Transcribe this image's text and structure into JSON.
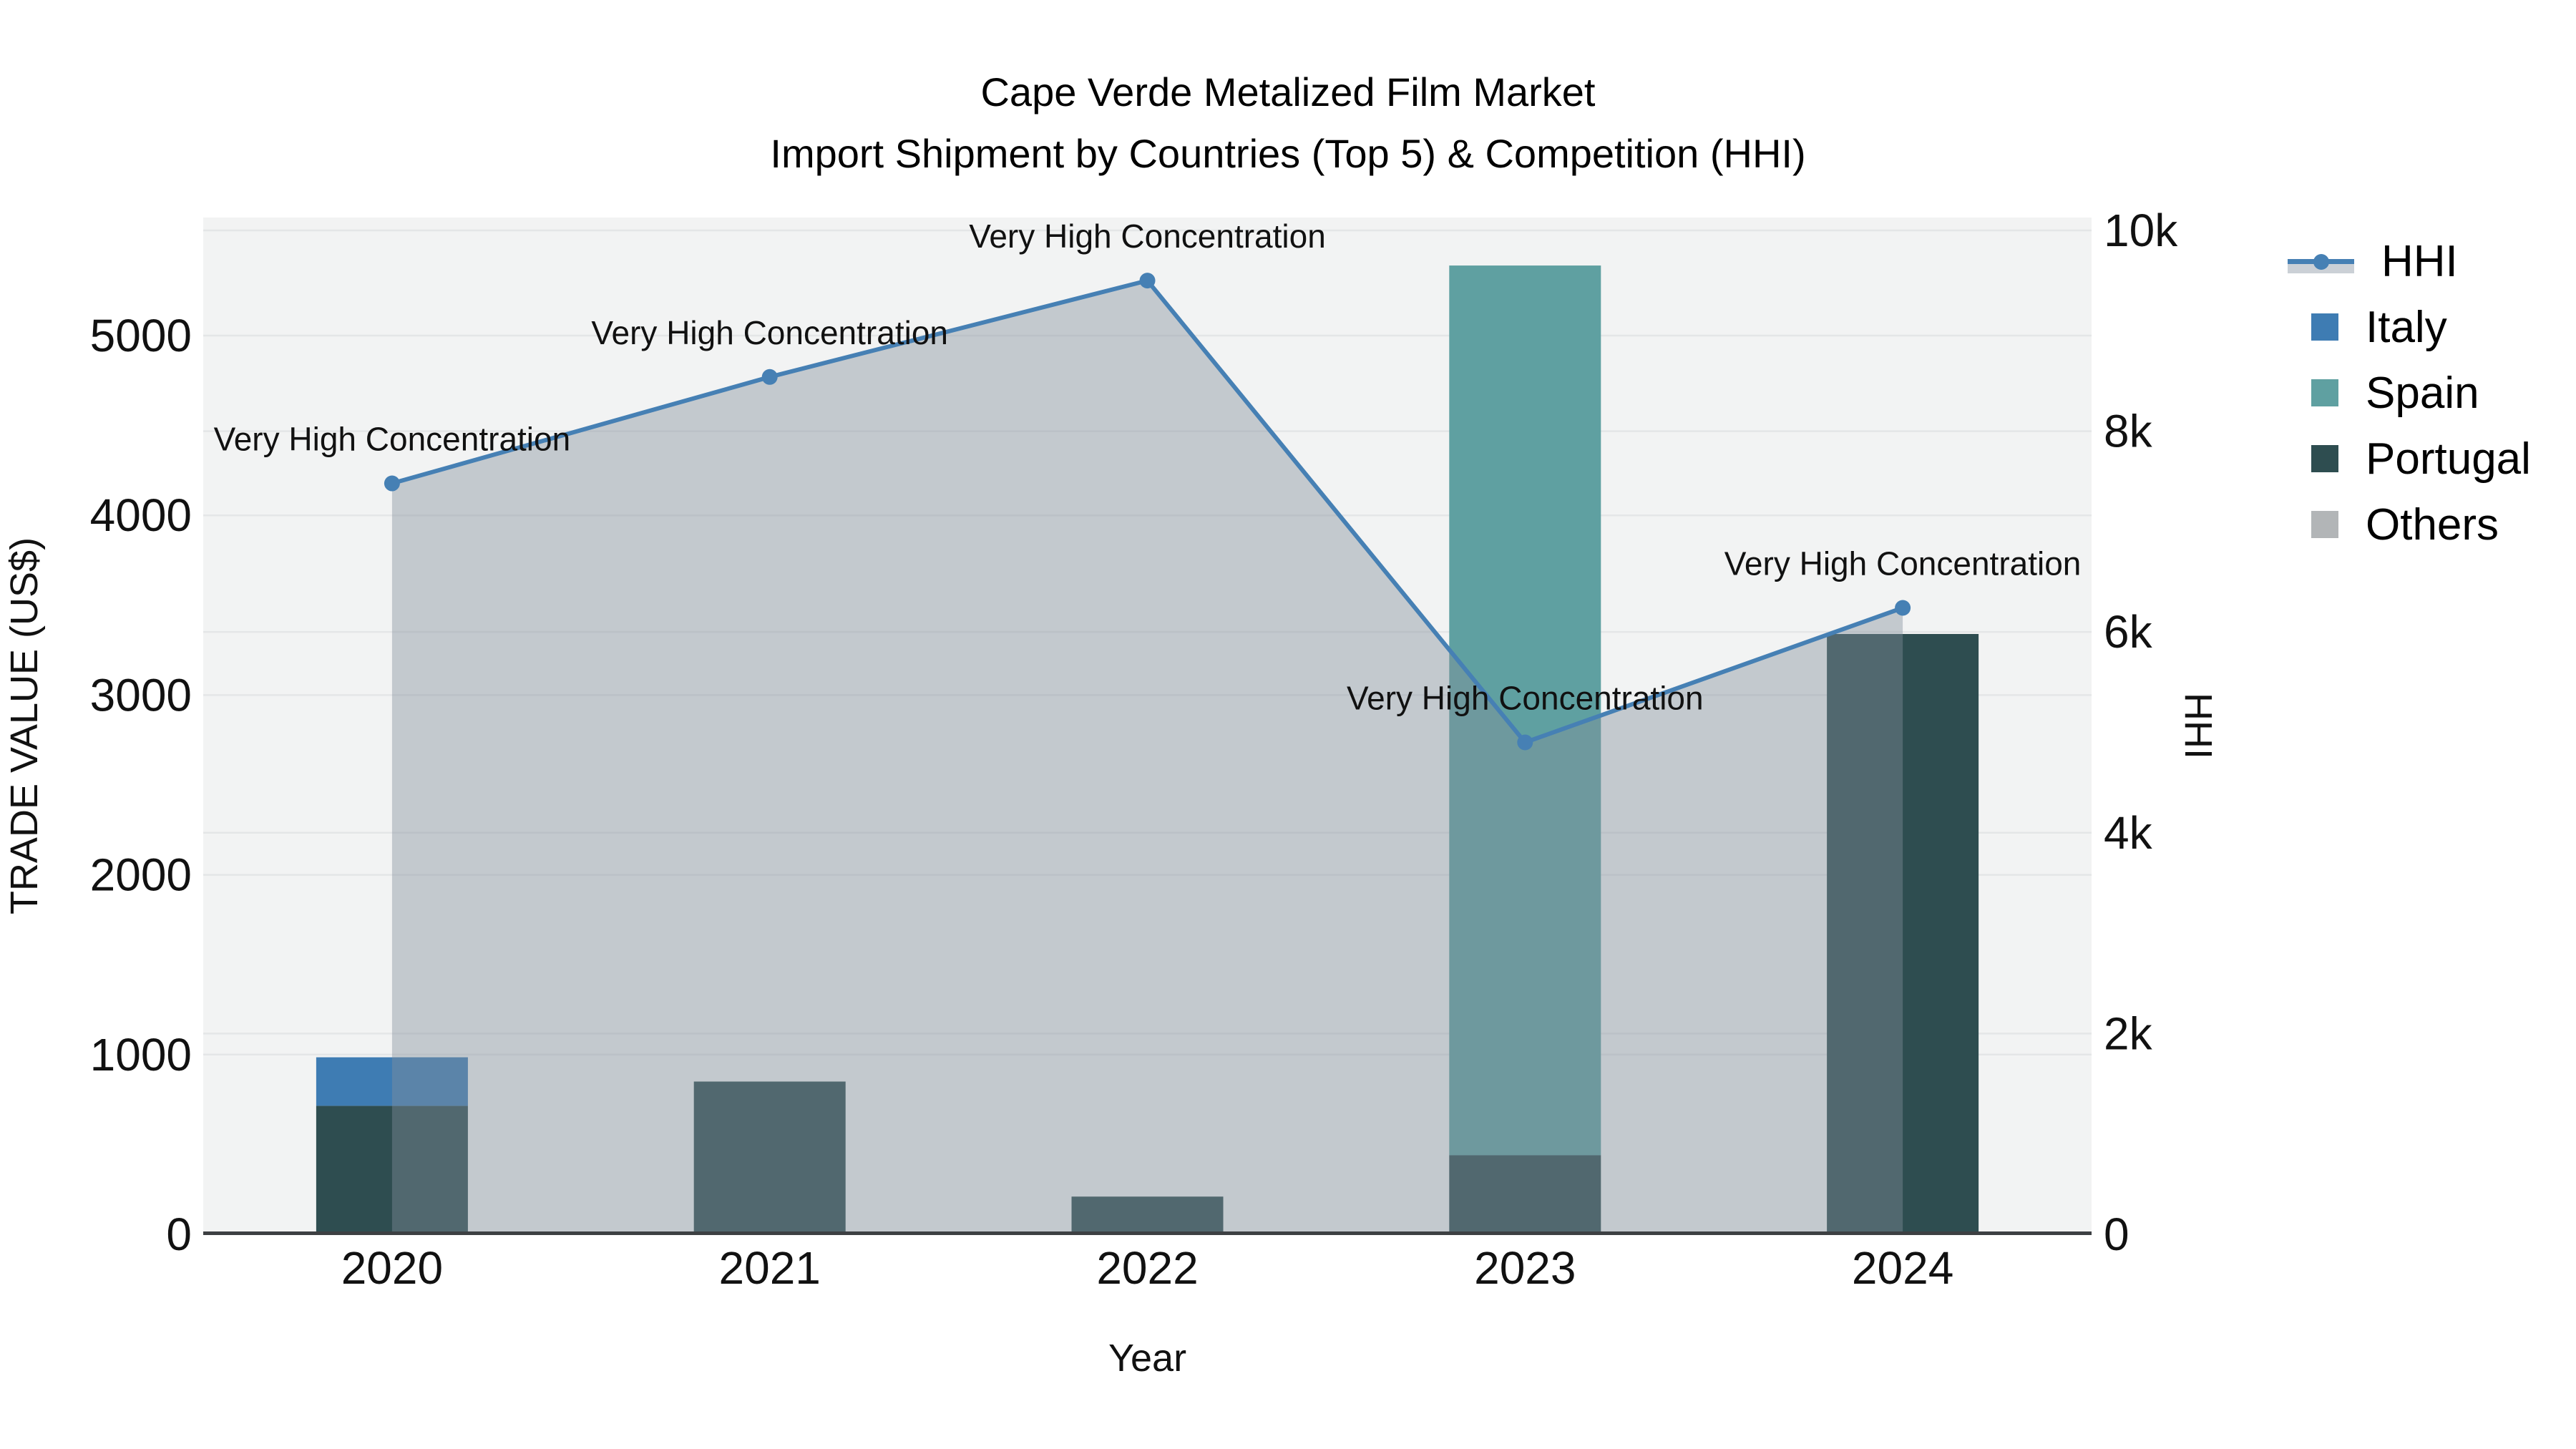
{
  "title": {
    "line1": "Cape Verde Metalized Film Market",
    "line2": "Import Shipment by Countries (Top 5) & Competition (HHI)"
  },
  "chart_data": {
    "type": "bar+line",
    "x_categories": [
      "2020",
      "2021",
      "2022",
      "2023",
      "2024"
    ],
    "xlabel": "Year",
    "y_left": {
      "label": "TRADE VALUE (US$)",
      "ticks": [
        0,
        1000,
        2000,
        3000,
        4000,
        5000
      ],
      "tick_labels": [
        "0",
        "1000",
        "2000",
        "3000",
        "4000",
        "5000"
      ],
      "axis_max": 5657
    },
    "y_right": {
      "label": "HHI",
      "ticks": [
        0,
        2000,
        4000,
        6000,
        8000,
        10000
      ],
      "tick_labels": [
        "0",
        "2k",
        "4k",
        "6k",
        "8k",
        "10k"
      ],
      "axis_max": 10128
    },
    "bar_series": [
      {
        "name": "Italy",
        "color": "#3e7cb3",
        "values": [
          270,
          0,
          0,
          0,
          0
        ]
      },
      {
        "name": "Spain",
        "color": "#5fa0a1",
        "values": [
          0,
          0,
          0,
          4950,
          0
        ]
      },
      {
        "name": "Portugal",
        "color": "#2e4d50",
        "values": [
          715,
          850,
          210,
          440,
          3340
        ]
      },
      {
        "name": "Others",
        "color": "#b2b5b7",
        "values": [
          0,
          0,
          0,
          0,
          0
        ]
      }
    ],
    "stack_order": [
      "Portugal",
      "Spain",
      "Italy",
      "Others"
    ],
    "line_series": {
      "name": "HHI",
      "axis": "right",
      "color": "#4680b4",
      "fill_color": "rgba(131,143,154,0.42)",
      "legend_band_color": "#cbd0d6",
      "values": [
        7480,
        8540,
        9500,
        4900,
        6240
      ]
    },
    "annotations": [
      {
        "x_index": 0,
        "text": "Very High Concentration"
      },
      {
        "x_index": 1,
        "text": "Very High Concentration"
      },
      {
        "x_index": 2,
        "text": "Very High Concentration"
      },
      {
        "x_index": 3,
        "text": "Very High Concentration"
      },
      {
        "x_index": 4,
        "text": "Very High Concentration"
      }
    ],
    "legend_order": [
      "HHI",
      "Italy",
      "Spain",
      "Portugal",
      "Others"
    ],
    "colors": {
      "plot_bg": "#f2f3f3",
      "grid": "#e4e6e7",
      "axis_line": "#3d4043",
      "text": "#111111"
    }
  }
}
